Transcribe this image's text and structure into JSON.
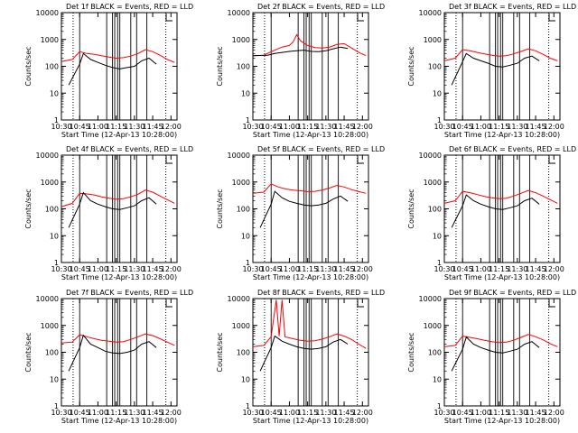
{
  "chart_data": {
    "type": "line",
    "layout": "3x3 grid",
    "xlabel": "Start Time (12-Apr-13 10:28:00)",
    "ylabel": "Counts/sec",
    "xlim": [
      "10:30",
      "12:05"
    ],
    "ylim": [
      1,
      10000
    ],
    "yscale": "log",
    "x_ticks": [
      "10:30",
      "10:45",
      "11:00",
      "11:15",
      "11:30",
      "11:45",
      "12:00"
    ],
    "x_ticks_alt": [
      "10:30",
      "10:45",
      "11:00",
      "11:15",
      "11:30",
      "11:45",
      "12:00"
    ],
    "y_ticks": [
      "1",
      "10",
      "100",
      "1000",
      "10000"
    ],
    "event_lines_min": [
      10.75,
      11.12,
      11.2,
      11.23,
      11.27,
      11.3,
      11.45,
      11.53,
      11.67
    ],
    "dotted_lines_min": [
      10.66,
      11.93
    ],
    "colors": {
      "events": "#000000",
      "lld": "#ff0000",
      "axes": "#000000"
    },
    "series": [
      {
        "name": "BLACK = Events",
        "color": "#000000"
      },
      {
        "name": "RED = LLD",
        "color": "#ff0000"
      }
    ],
    "panels": [
      {
        "title": "Det 1f BLACK = Events, RED = LLD",
        "events": [
          [
            10.6,
            20
          ],
          [
            10.75,
            120
          ],
          [
            10.8,
            300
          ],
          [
            10.9,
            180
          ],
          [
            11.0,
            140
          ],
          [
            11.1,
            110
          ],
          [
            11.2,
            90
          ],
          [
            11.3,
            80
          ],
          [
            11.4,
            90
          ],
          [
            11.5,
            100
          ],
          [
            11.6,
            160
          ],
          [
            11.7,
            200
          ],
          [
            11.8,
            120
          ]
        ],
        "lld": [
          [
            10.5,
            150
          ],
          [
            10.65,
            180
          ],
          [
            10.75,
            350
          ],
          [
            10.85,
            300
          ],
          [
            10.95,
            280
          ],
          [
            11.05,
            250
          ],
          [
            11.15,
            220
          ],
          [
            11.25,
            200
          ],
          [
            11.35,
            210
          ],
          [
            11.45,
            240
          ],
          [
            11.55,
            300
          ],
          [
            11.65,
            420
          ],
          [
            11.75,
            350
          ],
          [
            11.85,
            260
          ],
          [
            11.95,
            180
          ],
          [
            12.05,
            140
          ]
        ]
      },
      {
        "title": "Det 2f BLACK = Events, RED = LLD",
        "events": [
          [
            10.5,
            250
          ],
          [
            10.7,
            260
          ],
          [
            10.8,
            300
          ],
          [
            10.9,
            330
          ],
          [
            11.0,
            360
          ],
          [
            11.1,
            380
          ],
          [
            11.2,
            400
          ],
          [
            11.3,
            360
          ],
          [
            11.4,
            350
          ],
          [
            11.5,
            380
          ],
          [
            11.6,
            450
          ],
          [
            11.7,
            520
          ],
          [
            11.8,
            460
          ]
        ],
        "lld": [
          [
            10.5,
            250
          ],
          [
            10.65,
            260
          ],
          [
            10.75,
            350
          ],
          [
            10.9,
            520
          ],
          [
            11.0,
            600
          ],
          [
            11.05,
            800
          ],
          [
            11.1,
            1500
          ],
          [
            11.15,
            900
          ],
          [
            11.25,
            600
          ],
          [
            11.35,
            500
          ],
          [
            11.45,
            480
          ],
          [
            11.55,
            520
          ],
          [
            11.65,
            650
          ],
          [
            11.75,
            700
          ],
          [
            11.85,
            480
          ],
          [
            11.95,
            330
          ],
          [
            12.05,
            250
          ]
        ]
      },
      {
        "title": "Det 3f BLACK = Events, RED = LLD",
        "events": [
          [
            10.6,
            20
          ],
          [
            10.75,
            150
          ],
          [
            10.8,
            300
          ],
          [
            10.9,
            200
          ],
          [
            11.0,
            160
          ],
          [
            11.1,
            130
          ],
          [
            11.2,
            100
          ],
          [
            11.3,
            95
          ],
          [
            11.4,
            110
          ],
          [
            11.5,
            130
          ],
          [
            11.6,
            200
          ],
          [
            11.7,
            240
          ],
          [
            11.8,
            160
          ]
        ],
        "lld": [
          [
            10.5,
            160
          ],
          [
            10.65,
            200
          ],
          [
            10.75,
            420
          ],
          [
            10.85,
            380
          ],
          [
            10.95,
            330
          ],
          [
            11.05,
            290
          ],
          [
            11.15,
            260
          ],
          [
            11.25,
            240
          ],
          [
            11.35,
            250
          ],
          [
            11.45,
            290
          ],
          [
            11.55,
            360
          ],
          [
            11.65,
            450
          ],
          [
            11.75,
            380
          ],
          [
            11.85,
            280
          ],
          [
            11.95,
            200
          ],
          [
            12.05,
            160
          ]
        ]
      },
      {
        "title": "Det 4f BLACK = Events, RED = LLD",
        "events": [
          [
            10.6,
            20
          ],
          [
            10.75,
            150
          ],
          [
            10.8,
            400
          ],
          [
            10.9,
            200
          ],
          [
            11.0,
            150
          ],
          [
            11.1,
            120
          ],
          [
            11.2,
            100
          ],
          [
            11.3,
            95
          ],
          [
            11.4,
            110
          ],
          [
            11.5,
            130
          ],
          [
            11.6,
            200
          ],
          [
            11.7,
            260
          ],
          [
            11.8,
            150
          ]
        ],
        "lld": [
          [
            10.5,
            120
          ],
          [
            10.65,
            160
          ],
          [
            10.75,
            380
          ],
          [
            10.85,
            360
          ],
          [
            10.95,
            330
          ],
          [
            11.05,
            280
          ],
          [
            11.15,
            250
          ],
          [
            11.25,
            230
          ],
          [
            11.35,
            240
          ],
          [
            11.45,
            280
          ],
          [
            11.55,
            350
          ],
          [
            11.65,
            500
          ],
          [
            11.75,
            420
          ],
          [
            11.85,
            300
          ],
          [
            11.95,
            220
          ],
          [
            12.05,
            160
          ]
        ]
      },
      {
        "title": "Det 5f BLACK = Events, RED = LLD",
        "events": [
          [
            10.6,
            20
          ],
          [
            10.75,
            150
          ],
          [
            10.8,
            450
          ],
          [
            10.9,
            260
          ],
          [
            11.0,
            190
          ],
          [
            11.1,
            160
          ],
          [
            11.2,
            140
          ],
          [
            11.3,
            130
          ],
          [
            11.4,
            140
          ],
          [
            11.5,
            160
          ],
          [
            11.6,
            230
          ],
          [
            11.7,
            300
          ],
          [
            11.8,
            190
          ]
        ],
        "lld": [
          [
            10.5,
            380
          ],
          [
            10.65,
            420
          ],
          [
            10.75,
            850
          ],
          [
            10.85,
            650
          ],
          [
            10.95,
            550
          ],
          [
            11.05,
            500
          ],
          [
            11.15,
            470
          ],
          [
            11.25,
            440
          ],
          [
            11.35,
            450
          ],
          [
            11.45,
            500
          ],
          [
            11.55,
            600
          ],
          [
            11.65,
            750
          ],
          [
            11.75,
            650
          ],
          [
            11.85,
            520
          ],
          [
            11.95,
            440
          ],
          [
            12.05,
            380
          ]
        ]
      },
      {
        "title": "Det 6f BLACK = Events, RED = LLD",
        "events": [
          [
            10.6,
            20
          ],
          [
            10.75,
            130
          ],
          [
            10.8,
            330
          ],
          [
            10.9,
            200
          ],
          [
            11.0,
            150
          ],
          [
            11.1,
            120
          ],
          [
            11.2,
            100
          ],
          [
            11.3,
            95
          ],
          [
            11.4,
            110
          ],
          [
            11.5,
            130
          ],
          [
            11.6,
            200
          ],
          [
            11.7,
            250
          ],
          [
            11.8,
            150
          ]
        ],
        "lld": [
          [
            10.5,
            160
          ],
          [
            10.65,
            200
          ],
          [
            10.75,
            450
          ],
          [
            10.85,
            400
          ],
          [
            10.95,
            340
          ],
          [
            11.05,
            290
          ],
          [
            11.15,
            260
          ],
          [
            11.25,
            240
          ],
          [
            11.35,
            250
          ],
          [
            11.45,
            300
          ],
          [
            11.55,
            380
          ],
          [
            11.65,
            480
          ],
          [
            11.75,
            400
          ],
          [
            11.85,
            300
          ],
          [
            11.95,
            220
          ],
          [
            12.05,
            160
          ]
        ]
      },
      {
        "title": "Det 7f BLACK = Events, RED = LLD",
        "events": [
          [
            10.6,
            20
          ],
          [
            10.75,
            150
          ],
          [
            10.8,
            430
          ],
          [
            10.9,
            200
          ],
          [
            11.0,
            150
          ],
          [
            11.1,
            110
          ],
          [
            11.2,
            95
          ],
          [
            11.3,
            90
          ],
          [
            11.4,
            100
          ],
          [
            11.5,
            120
          ],
          [
            11.6,
            200
          ],
          [
            11.7,
            250
          ],
          [
            11.8,
            150
          ]
        ],
        "lld": [
          [
            10.5,
            220
          ],
          [
            10.65,
            240
          ],
          [
            10.75,
            450
          ],
          [
            10.85,
            380
          ],
          [
            10.95,
            320
          ],
          [
            11.05,
            280
          ],
          [
            11.15,
            260
          ],
          [
            11.25,
            240
          ],
          [
            11.35,
            250
          ],
          [
            11.45,
            300
          ],
          [
            11.55,
            380
          ],
          [
            11.65,
            480
          ],
          [
            11.75,
            420
          ],
          [
            11.85,
            320
          ],
          [
            11.95,
            240
          ],
          [
            12.05,
            180
          ]
        ]
      },
      {
        "title": "Det 8f BLACK = Events, RED = LLD",
        "events": [
          [
            10.6,
            20
          ],
          [
            10.75,
            150
          ],
          [
            10.8,
            400
          ],
          [
            10.9,
            260
          ],
          [
            11.0,
            200
          ],
          [
            11.1,
            160
          ],
          [
            11.2,
            140
          ],
          [
            11.3,
            130
          ],
          [
            11.4,
            140
          ],
          [
            11.5,
            160
          ],
          [
            11.6,
            240
          ],
          [
            11.7,
            300
          ],
          [
            11.8,
            200
          ]
        ],
        "lld": [
          [
            10.5,
            160
          ],
          [
            10.65,
            180
          ],
          [
            10.75,
            380
          ],
          [
            10.82,
            9000
          ],
          [
            10.86,
            400
          ],
          [
            10.9,
            9000
          ],
          [
            10.94,
            380
          ],
          [
            11.05,
            320
          ],
          [
            11.15,
            280
          ],
          [
            11.25,
            260
          ],
          [
            11.35,
            270
          ],
          [
            11.45,
            310
          ],
          [
            11.55,
            380
          ],
          [
            11.65,
            480
          ],
          [
            11.75,
            400
          ],
          [
            11.85,
            300
          ],
          [
            11.95,
            200
          ],
          [
            12.05,
            140
          ]
        ]
      },
      {
        "title": "Det 9f BLACK = Events, RED = LLD",
        "events": [
          [
            10.6,
            20
          ],
          [
            10.75,
            130
          ],
          [
            10.8,
            370
          ],
          [
            10.9,
            200
          ],
          [
            11.0,
            150
          ],
          [
            11.1,
            120
          ],
          [
            11.2,
            100
          ],
          [
            11.3,
            95
          ],
          [
            11.4,
            110
          ],
          [
            11.5,
            130
          ],
          [
            11.6,
            200
          ],
          [
            11.7,
            250
          ],
          [
            11.8,
            150
          ]
        ],
        "lld": [
          [
            10.5,
            160
          ],
          [
            10.65,
            180
          ],
          [
            10.75,
            400
          ],
          [
            10.85,
            360
          ],
          [
            10.95,
            320
          ],
          [
            11.05,
            280
          ],
          [
            11.15,
            250
          ],
          [
            11.25,
            230
          ],
          [
            11.35,
            240
          ],
          [
            11.45,
            280
          ],
          [
            11.55,
            360
          ],
          [
            11.65,
            460
          ],
          [
            11.75,
            380
          ],
          [
            11.85,
            290
          ],
          [
            11.95,
            210
          ],
          [
            12.05,
            160
          ]
        ]
      }
    ]
  }
}
